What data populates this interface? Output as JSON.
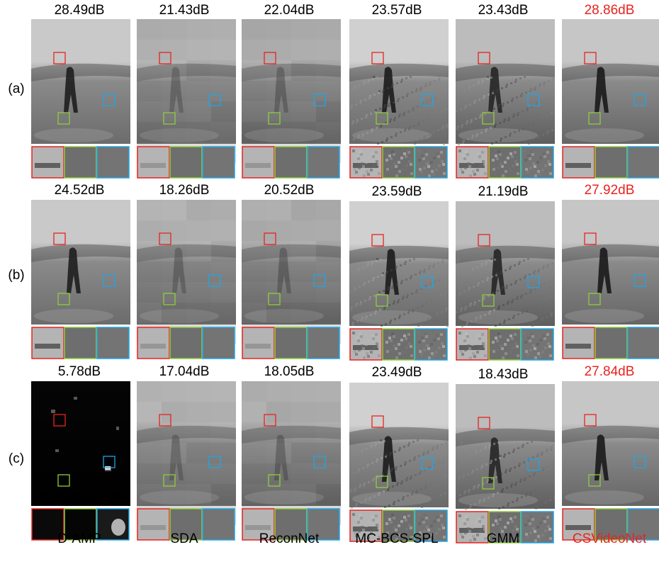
{
  "figure": {
    "methods": [
      "D-AMP",
      "SDA",
      "ReconNet",
      "MC-BCS-SPL",
      "GMM",
      "CSVideoNet"
    ],
    "highlight_method": "CSVideoNet",
    "highlight_color": "#e8231e",
    "box_colors": {
      "red": "#e8231e",
      "green": "#8fcd3c",
      "blue": "#1ea6e8"
    },
    "rows": [
      {
        "label": "(a)",
        "psnr": [
          "28.49dB",
          "21.43dB",
          "22.04dB",
          "23.57dB",
          "23.43dB",
          "28.86dB"
        ]
      },
      {
        "label": "(b)",
        "psnr": [
          "24.52dB",
          "18.26dB",
          "20.52dB",
          "23.59dB",
          "21.19dB",
          "27.92dB"
        ]
      },
      {
        "label": "(c)",
        "psnr": [
          "5.78dB",
          "17.04dB",
          "18.05dB",
          "23.49dB",
          "18.43dB",
          "27.84dB"
        ]
      }
    ]
  }
}
